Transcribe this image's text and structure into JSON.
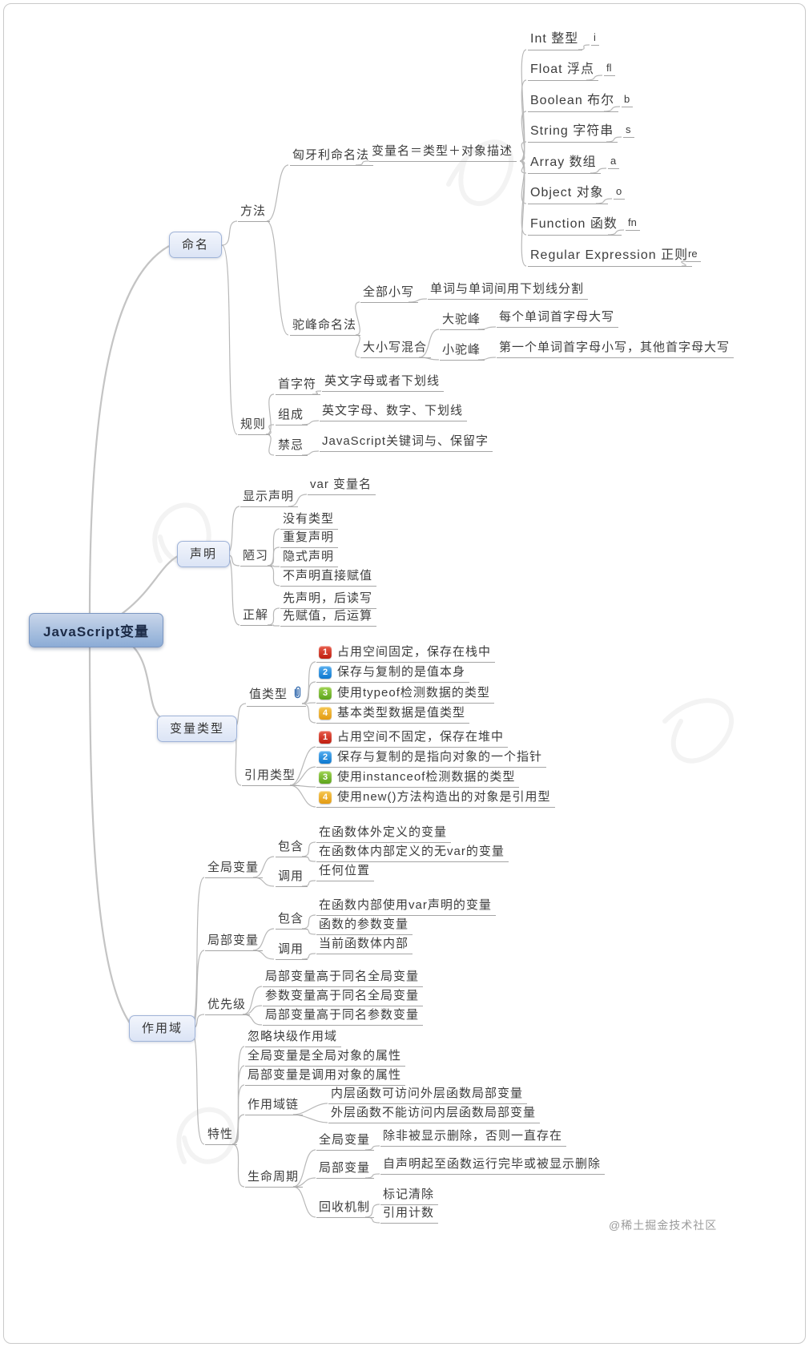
{
  "root": "JavaScript变量",
  "watermark": "@稀土掘金技术社区",
  "naming": {
    "label": "命名",
    "method": "方法",
    "hungarian": "匈牙利命名法",
    "hungarian_formula": "变量名＝类型＋对象描述",
    "types": [
      {
        "name": "Int 整型",
        "prefix": "i"
      },
      {
        "name": "Float 浮点",
        "prefix": "fl"
      },
      {
        "name": "Boolean 布尔",
        "prefix": "b"
      },
      {
        "name": "String 字符串",
        "prefix": "s"
      },
      {
        "name": "Array 数组",
        "prefix": "a"
      },
      {
        "name": "Object 对象",
        "prefix": "o"
      },
      {
        "name": "Function 函数",
        "prefix": "fn"
      },
      {
        "name": "Regular Expression 正则",
        "prefix": "re"
      }
    ],
    "camel": "驼峰命名法",
    "all_lower": "全部小写",
    "all_lower_rule": "单词与单词间用下划线分割",
    "mixed_case": "大小写混合",
    "upper_camel": "大驼峰",
    "upper_camel_rule": "每个单词首字母大写",
    "lower_camel": "小驼峰",
    "lower_camel_rule": "第一个单词首字母小写，其他首字母大写",
    "rules": "规则",
    "first_char": "首字符",
    "first_char_rule": "英文字母或者下划线",
    "composition": "组成",
    "composition_rule": "英文字母、数字、下划线",
    "taboo": "禁忌",
    "taboo_rule": "JavaScript关键词与、保留字"
  },
  "declaration": {
    "label": "声明",
    "explicit": "显示声明",
    "explicit_syntax": "var 变量名",
    "bad_habits": "陋习",
    "bad_habit_items": [
      "没有类型",
      "重复声明",
      "隐式声明",
      "不声明直接赋值"
    ],
    "correct": "正解",
    "correct_items": [
      "先声明，后读写",
      "先赋值，后运算"
    ]
  },
  "types": {
    "label": "变量类型",
    "value_type": "值类型",
    "value_items": [
      {
        "num": "1",
        "text": "占用空间固定，保存在栈中"
      },
      {
        "num": "2",
        "text": "保存与复制的是值本身"
      },
      {
        "num": "3",
        "text": "使用typeof检测数据的类型"
      },
      {
        "num": "4",
        "text": "基本类型数据是值类型"
      }
    ],
    "reference_type": "引用类型",
    "reference_items": [
      {
        "num": "1",
        "text": "占用空间不固定，保存在堆中"
      },
      {
        "num": "2",
        "text": "保存与复制的是指向对象的一个指针"
      },
      {
        "num": "3",
        "text": "使用instanceof检测数据的类型"
      },
      {
        "num": "4",
        "text": "使用new()方法构造出的对象是引用型"
      }
    ]
  },
  "scope": {
    "label": "作用域",
    "global": "全局变量",
    "global_contains": "包含",
    "global_contains_items": [
      "在函数体外定义的变量",
      "在函数体内部定义的无var的变量"
    ],
    "global_call": "调用",
    "global_call_value": "任何位置",
    "local": "局部变量",
    "local_contains": "包含",
    "local_contains_items": [
      "在函数内部使用var声明的变量",
      "函数的参数变量"
    ],
    "local_call": "调用",
    "local_call_value": "当前函数体内部",
    "priority": "优先级",
    "priority_items": [
      "局部变量高于同名全局变量",
      "参数变量高于同名全局变量",
      "局部变量高于同名参数变量"
    ],
    "features": "特性",
    "feature_items": [
      "忽略块级作用域",
      "全局变量是全局对象的属性",
      "局部变量是调用对象的属性"
    ],
    "scope_chain": "作用域链",
    "scope_chain_items": [
      "内层函数可访问外层函数局部变量",
      "外层函数不能访问内层函数局部变量"
    ],
    "lifecycle": "生命周期",
    "lifecycle_global": "全局变量",
    "lifecycle_global_rule": "除非被显示删除，否则一直存在",
    "lifecycle_local": "局部变量",
    "lifecycle_local_rule": "自声明起至函数运行完毕或被显示删除",
    "gc": "回收机制",
    "gc_items": [
      "标记清除",
      "引用计数"
    ]
  },
  "colors": {
    "badge1": "#bf1d0e",
    "badge2": "#0d78cf",
    "badge3": "#5da31c",
    "badge4": "#e39b12",
    "root_bg": "#8cacd6",
    "branch_bg": "#dbe4f5"
  }
}
